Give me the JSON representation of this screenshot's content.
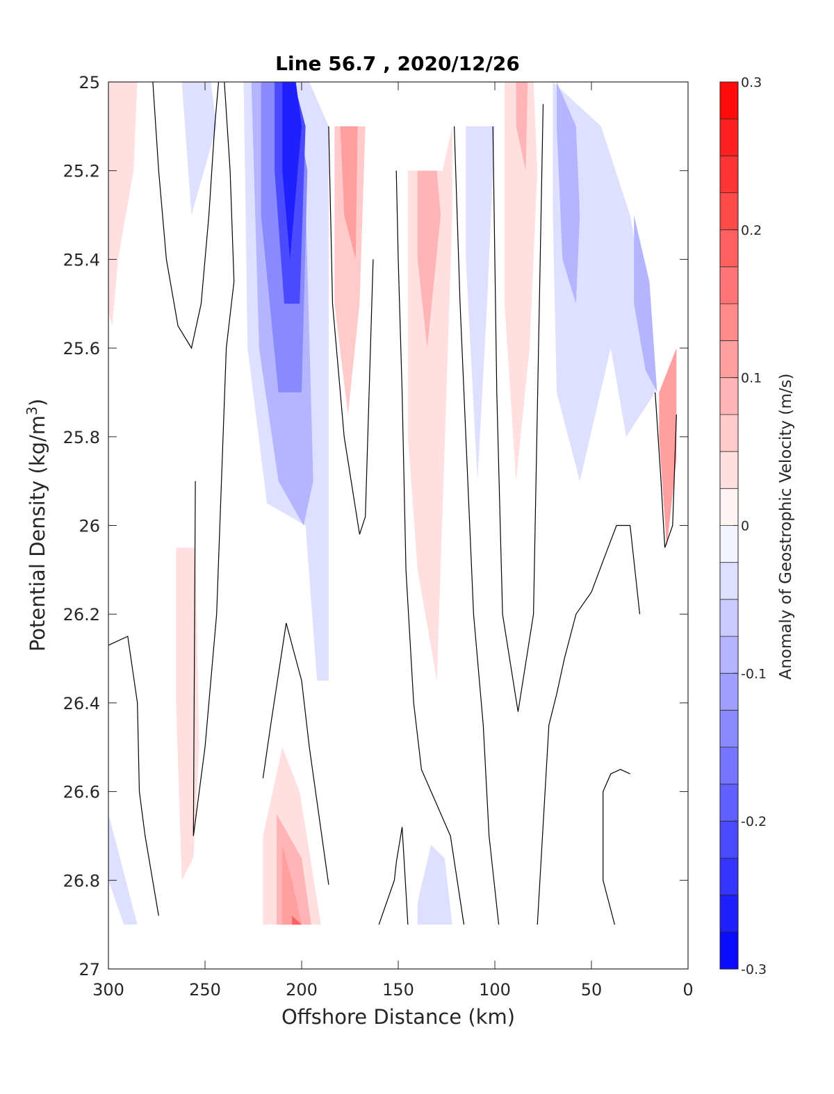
{
  "chart_data": {
    "type": "heatmap",
    "title": "Line 56.7 , 2020/12/26",
    "xlabel": "Offshore Distance (km)",
    "ylabel": "Potential Density (kg/m",
    "ylabel_superscript": "3",
    "ylabel_close": ")",
    "xlim": [
      300,
      0
    ],
    "ylim": [
      25,
      27
    ],
    "x_reversed": true,
    "y_reversed": true,
    "xticks": [
      "300",
      "250",
      "200",
      "150",
      "100",
      "50",
      "0"
    ],
    "yticks": [
      "25",
      "25.2",
      "25.4",
      "25.6",
      "25.8",
      "26",
      "26.2",
      "26.4",
      "26.6",
      "26.8",
      "27"
    ],
    "colorbar": {
      "label": "Anomaly of Geostrophic Velocity (m/s)",
      "range": [
        -0.3,
        0.3
      ],
      "ticks": [
        "0.3",
        "0.2",
        "0.1",
        "0",
        "-0.1",
        "-0.2",
        "-0.3"
      ],
      "levels": 24,
      "color_min": "#0000ff",
      "color_mid": "#ffffff",
      "color_max": "#ff0000"
    },
    "regions": [
      {
        "x": [
          300,
          285,
          287,
          295,
          298,
          300
        ],
        "y": [
          25,
          25,
          25.2,
          25.4,
          25.55,
          25.52
        ],
        "v": 0.03
      },
      {
        "x": [
          262,
          247,
          244,
          257,
          262
        ],
        "y": [
          25,
          25,
          25.1,
          25.3,
          25
        ],
        "v": -0.03
      },
      {
        "x": [
          230,
          196,
          186,
          186,
          192,
          198,
          218,
          228
        ],
        "y": [
          25,
          25,
          25.1,
          26.35,
          26.35,
          26.0,
          25.95,
          25.6
        ],
        "v": -0.03
      },
      {
        "x": [
          226,
          212,
          199,
          194,
          199,
          212,
          222
        ],
        "y": [
          25,
          25,
          25.1,
          25.9,
          26.0,
          25.9,
          25.6
        ],
        "v": -0.08
      },
      {
        "x": [
          221,
          205,
          197,
          200,
          212,
          221
        ],
        "y": [
          25,
          25,
          25.2,
          25.7,
          25.7,
          25.3
        ],
        "v": -0.14
      },
      {
        "x": [
          214,
          204,
          198,
          201,
          209,
          214
        ],
        "y": [
          25,
          25,
          25.1,
          25.5,
          25.5,
          25.2
        ],
        "v": -0.2
      },
      {
        "x": [
          210,
          203,
          200,
          206,
          210
        ],
        "y": [
          25,
          25,
          25.1,
          25.4,
          25.2
        ],
        "v": -0.26
      },
      {
        "x": [
          183,
          167,
          170,
          176,
          183
        ],
        "y": [
          25.1,
          25.1,
          25.5,
          25.75,
          25.5
        ],
        "v": 0.05
      },
      {
        "x": [
          180,
          171,
          172,
          178
        ],
        "y": [
          25.1,
          25.1,
          25.4,
          25.3
        ],
        "v": 0.1
      },
      {
        "x": [
          145,
          127,
          122,
          122,
          130,
          140,
          145
        ],
        "y": [
          25.2,
          25.2,
          25.1,
          25.3,
          26.35,
          26.1,
          25.8
        ],
        "v": 0.04
      },
      {
        "x": [
          140,
          130,
          128,
          135,
          140
        ],
        "y": [
          25.2,
          25.2,
          25.3,
          25.6,
          25.4
        ],
        "v": 0.08
      },
      {
        "x": [
          115,
          100,
          104,
          109,
          115
        ],
        "y": [
          25.1,
          25.1,
          25.5,
          25.9,
          25.4
        ],
        "v": -0.03
      },
      {
        "x": [
          95,
          80,
          78,
          82,
          89,
          95
        ],
        "y": [
          25,
          25,
          25.2,
          25.6,
          25.9,
          25.5
        ],
        "v": 0.04
      },
      {
        "x": [
          89,
          83,
          84,
          89
        ],
        "y": [
          25,
          25,
          25.2,
          25.1
        ],
        "v": 0.08
      },
      {
        "x": [
          70,
          45,
          30,
          20,
          17,
          32,
          40,
          56,
          68,
          70
        ],
        "y": [
          25,
          25.1,
          25.3,
          25.55,
          25.7,
          25.8,
          25.6,
          25.9,
          25.7,
          25.3
        ],
        "v": -0.03
      },
      {
        "x": [
          68,
          58,
          56,
          58,
          65,
          68
        ],
        "y": [
          25,
          25.1,
          25.3,
          25.5,
          25.4,
          25.1
        ],
        "v": -0.08
      },
      {
        "x": [
          28,
          20,
          16,
          22,
          28
        ],
        "y": [
          25.3,
          25.45,
          25.7,
          25.65,
          25.5
        ],
        "v": -0.1
      },
      {
        "x": [
          15,
          6,
          6,
          11,
          15
        ],
        "y": [
          25.7,
          25.6,
          25.85,
          26.05,
          25.8
        ],
        "v": 0.12
      },
      {
        "x": [
          265,
          255,
          253,
          256,
          262,
          265
        ],
        "y": [
          26.05,
          26.05,
          26.5,
          26.75,
          26.8,
          26.4
        ],
        "v": 0.03
      },
      {
        "x": [
          220,
          197,
          190,
          190,
          201,
          210,
          220
        ],
        "y": [
          26.9,
          26.9,
          26.9,
          26.9,
          26.6,
          26.5,
          26.7
        ],
        "v": 0.04
      },
      {
        "x": [
          213,
          200,
          195,
          200,
          213
        ],
        "y": [
          26.9,
          26.9,
          26.9,
          26.75,
          26.65
        ],
        "v": 0.08
      },
      {
        "x": [
          210,
          202,
          200,
          205,
          210
        ],
        "y": [
          26.9,
          26.9,
          26.9,
          26.8,
          26.72
        ],
        "v": 0.12
      },
      {
        "x": [
          205,
          202,
          200,
          205
        ],
        "y": [
          26.9,
          26.9,
          26.9,
          26.88
        ],
        "v": 0.18
      },
      {
        "x": [
          300,
          285,
          292,
          300
        ],
        "y": [
          26.65,
          26.9,
          26.9,
          26.8
        ],
        "v": -0.03
      },
      {
        "x": [
          140,
          122,
          126,
          133,
          140
        ],
        "y": [
          26.9,
          26.9,
          26.75,
          26.72,
          26.85
        ],
        "v": -0.03
      }
    ],
    "contours": [
      {
        "x": [
          277,
          274,
          270,
          264,
          257,
          252,
          248,
          245,
          243
        ],
        "y": [
          25,
          25.2,
          25.4,
          25.55,
          25.6,
          25.5,
          25.3,
          25.1,
          25
        ],
        "level": 0
      },
      {
        "x": [
          240,
          237,
          235,
          239,
          244,
          250,
          256,
          255
        ],
        "y": [
          25,
          25.2,
          25.45,
          25.6,
          26.2,
          26.5,
          26.7,
          25.9
        ],
        "level": 0
      },
      {
        "x": [
          300,
          290,
          285,
          284,
          281,
          274
        ],
        "y": [
          26.27,
          26.25,
          26.4,
          26.6,
          26.7,
          26.88
        ],
        "level": 0
      },
      {
        "x": [
          220,
          216,
          208,
          200,
          196,
          186
        ],
        "y": [
          26.57,
          26.45,
          26.22,
          26.35,
          26.5,
          26.81
        ],
        "level": 0
      },
      {
        "x": [
          186,
          184,
          178,
          170,
          167,
          163
        ],
        "y": [
          25.1,
          25.5,
          25.8,
          26.02,
          25.98,
          25.4
        ],
        "level": 0
      },
      {
        "x": [
          160,
          152,
          151,
          148,
          145,
          145
        ],
        "y": [
          26.9,
          26.8,
          26.76,
          26.68,
          26.9,
          26.9
        ],
        "level": 0
      },
      {
        "x": [
          151,
          150,
          148,
          146,
          142,
          138,
          133,
          123,
          116
        ],
        "y": [
          25.2,
          25.4,
          25.7,
          26.1,
          26.4,
          26.55,
          26.6,
          26.7,
          26.9
        ],
        "level": 0
      },
      {
        "x": [
          121,
          118,
          111,
          106,
          103,
          98
        ],
        "y": [
          25.1,
          25.5,
          26.2,
          26.45,
          26.7,
          26.9
        ],
        "level": 0
      },
      {
        "x": [
          101,
          99,
          96,
          88,
          80,
          75
        ],
        "y": [
          25.1,
          25.7,
          26.2,
          26.42,
          26.2,
          25.05
        ],
        "level": 0
      },
      {
        "x": [
          78,
          72,
          68,
          64,
          58,
          50,
          44,
          37,
          30,
          25
        ],
        "y": [
          26.9,
          26.45,
          26.38,
          26.3,
          26.2,
          26.15,
          26.08,
          26.0,
          26.0,
          26.2
        ],
        "level": 0
      },
      {
        "x": [
          38,
          44,
          44,
          40,
          35,
          30
        ],
        "y": [
          26.9,
          26.8,
          26.6,
          26.56,
          26.55,
          26.56
        ],
        "level": 0
      },
      {
        "x": [
          17,
          14,
          12,
          8,
          6
        ],
        "y": [
          25.7,
          25.9,
          26.05,
          26.0,
          25.75
        ],
        "level": 0
      }
    ]
  }
}
